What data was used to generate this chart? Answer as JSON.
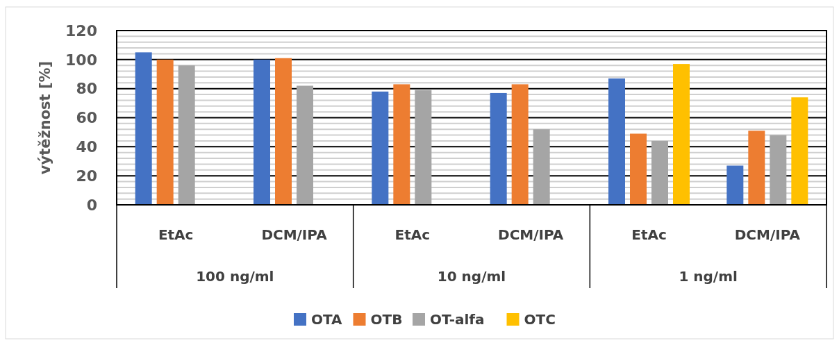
{
  "chart_data": {
    "type": "bar",
    "ylabel": "výtěžnost [%]",
    "categories": [
      "EtAc",
      "DCM/IPA",
      "EtAc",
      "DCM/IPA",
      "EtAc",
      "DCM/IPA"
    ],
    "annotations": [
      "100 ng/ml",
      "10 ng/ml",
      "1 ng/ml"
    ],
    "series": [
      {
        "name": "OTA",
        "color": "#4472c4",
        "values": [
          105,
          100,
          78,
          77,
          87,
          27
        ]
      },
      {
        "name": "OTB",
        "color": "#ed7d31",
        "values": [
          100,
          101,
          83,
          83,
          49,
          51
        ]
      },
      {
        "name": "OT-alfa",
        "color": "#a5a5a5",
        "values": [
          96,
          82,
          79,
          52,
          44,
          48
        ]
      },
      {
        "name": "OTC",
        "color": "#ffc000",
        "values": [
          null,
          null,
          null,
          null,
          97,
          74
        ]
      }
    ],
    "ylim": [
      0,
      120
    ],
    "yticks": [
      0,
      {
        "value": 4,
        "label": null
      },
      {
        "value": 8,
        "label": null
      },
      {
        "value": 12,
        "label": null
      },
      {
        "value": 16,
        "label": null
      },
      20,
      {
        "value": 24,
        "label": null
      },
      {
        "value": 28,
        "label": null
      },
      {
        "value": 32,
        "label": null
      },
      {
        "value": 36,
        "label": null
      },
      40,
      {
        "value": 44,
        "label": null
      },
      {
        "value": 48,
        "label": null
      },
      {
        "value": 52,
        "label": null
      },
      {
        "value": 56,
        "label": null
      },
      60,
      {
        "value": 64,
        "label": null
      },
      {
        "value": 68,
        "label": null
      },
      {
        "value": 72,
        "label": null
      },
      {
        "value": 76,
        "label": null
      },
      80,
      {
        "value": 84,
        "label": null
      },
      {
        "value": 88,
        "label": null
      },
      {
        "value": 92,
        "label": null
      },
      {
        "value": 96,
        "label": null
      },
      100,
      {
        "value": 104,
        "label": null
      },
      {
        "value": 108,
        "label": null
      },
      {
        "value": 112,
        "label": null
      },
      {
        "value": 116,
        "label": null
      },
      120
    ],
    "grid": "y",
    "legend": "bottom"
  }
}
